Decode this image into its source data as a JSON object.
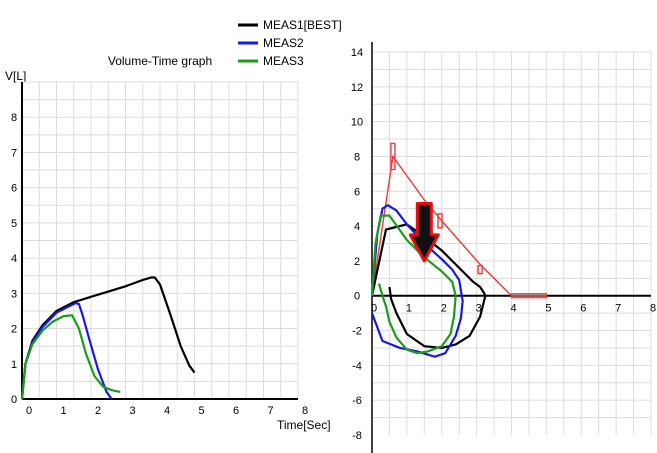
{
  "legend": [
    {
      "name": "MEAS1[BEST]",
      "color": "#000000"
    },
    {
      "name": "MEAS2",
      "color": "#1a1adc"
    },
    {
      "name": "MEAS3",
      "color": "#1e9a1e"
    }
  ],
  "chart_data": [
    {
      "type": "line",
      "title": "Volume-Time graph",
      "xlabel": "Time[Sec]",
      "ylabel": "V[L]",
      "xlim": [
        0,
        8
      ],
      "ylim": [
        0,
        9
      ],
      "x_ticks": [
        0,
        1,
        2,
        3,
        4,
        5,
        6,
        7,
        8
      ],
      "y_ticks": [
        0,
        1,
        2,
        3,
        4,
        5,
        6,
        7,
        8
      ],
      "grid": true,
      "series": [
        {
          "name": "MEAS1[BEST]",
          "color": "#000000",
          "x": [
            -0.1,
            0.1,
            0.3,
            0.6,
            1.0,
            1.5,
            2.0,
            2.5,
            3.0,
            3.5,
            3.75,
            3.85,
            4.0,
            4.3,
            4.6,
            4.85,
            5.0
          ],
          "y": [
            0,
            1.0,
            1.65,
            2.1,
            2.5,
            2.75,
            2.9,
            3.05,
            3.2,
            3.38,
            3.45,
            3.45,
            3.25,
            2.4,
            1.5,
            0.95,
            0.75
          ]
        },
        {
          "name": "MEAS2",
          "color": "#1a1adc",
          "x": [
            -0.1,
            0.1,
            0.3,
            0.6,
            1.0,
            1.3,
            1.55,
            1.65,
            1.75,
            1.95,
            2.2,
            2.45,
            2.6
          ],
          "y": [
            0,
            1.0,
            1.6,
            2.05,
            2.45,
            2.6,
            2.72,
            2.7,
            2.4,
            1.7,
            0.85,
            0.2,
            0.0
          ]
        },
        {
          "name": "MEAS3",
          "color": "#1e9a1e",
          "x": [
            -0.1,
            0.1,
            0.3,
            0.6,
            0.9,
            1.2,
            1.45,
            1.65,
            1.85,
            2.1,
            2.35,
            2.6,
            2.85
          ],
          "y": [
            0,
            1.0,
            1.55,
            1.95,
            2.2,
            2.35,
            2.38,
            2.0,
            1.3,
            0.65,
            0.35,
            0.25,
            0.2
          ]
        }
      ]
    },
    {
      "type": "line",
      "title": "",
      "xlim": [
        0,
        8
      ],
      "ylim": [
        -8,
        14
      ],
      "x_ticks": [
        0,
        1,
        2,
        3,
        4,
        5,
        6,
        7,
        8
      ],
      "y_ticks": [
        14,
        12,
        10,
        8,
        6,
        4,
        2,
        0,
        -2,
        -4,
        -6,
        -8
      ],
      "grid": true,
      "series": [
        {
          "name": "MEAS1[BEST]",
          "color": "#000000",
          "x": [
            0.0,
            0.4,
            1.0,
            1.5,
            2.0,
            2.5,
            2.9,
            3.1,
            3.2,
            3.25,
            3.1,
            2.8,
            2.4,
            2.0,
            1.5,
            1.0,
            0.7,
            0.55,
            0.5
          ],
          "y": [
            0,
            3.8,
            4.1,
            3.4,
            2.6,
            1.6,
            0.8,
            0.5,
            0.2,
            0,
            -1.2,
            -2.3,
            -2.8,
            -3.0,
            -2.9,
            -2.2,
            -1.0,
            -0.2,
            0.5
          ]
        },
        {
          "name": "MEAS2",
          "color": "#1a1adc",
          "x": [
            0.0,
            0.15,
            0.3,
            0.45,
            0.7,
            1.0,
            1.5,
            2.0,
            2.3,
            2.5,
            2.6,
            2.55,
            2.4,
            2.1,
            1.8,
            1.3,
            0.8,
            0.3,
            0.0
          ],
          "y": [
            0,
            3.5,
            5.0,
            5.2,
            4.9,
            4.1,
            3.0,
            2.1,
            1.5,
            0.9,
            -0.3,
            -1.3,
            -2.3,
            -3.3,
            -3.5,
            -3.2,
            -3.0,
            -2.6,
            -1.0
          ]
        },
        {
          "name": "MEAS3",
          "color": "#1e9a1e",
          "x": [
            0.0,
            0.1,
            0.25,
            0.5,
            1.0,
            1.5,
            2.0,
            2.3,
            2.4,
            2.35,
            2.25,
            2.0,
            1.6,
            1.3,
            1.0,
            0.7,
            0.5,
            0.4,
            0.3,
            0.2
          ],
          "y": [
            0,
            3.0,
            4.6,
            4.6,
            3.2,
            2.2,
            1.4,
            0.8,
            0.0,
            -1.2,
            -2.2,
            -2.9,
            -3.2,
            -3.3,
            -3.1,
            -2.4,
            -1.5,
            -0.6,
            0.0,
            0.7
          ]
        }
      ],
      "reference": {
        "color": "#e83a3a",
        "x": [
          0.0,
          0.6,
          1.5,
          2.0,
          3.1,
          4.0,
          5.0
        ],
        "y": [
          0,
          8,
          5.5,
          4.3,
          1.8,
          0,
          0
        ]
      },
      "annotation": {
        "type": "arrow",
        "color": "#e01010",
        "x": 1.5,
        "y_from": 5.3,
        "y_to": 2.0
      }
    }
  ]
}
